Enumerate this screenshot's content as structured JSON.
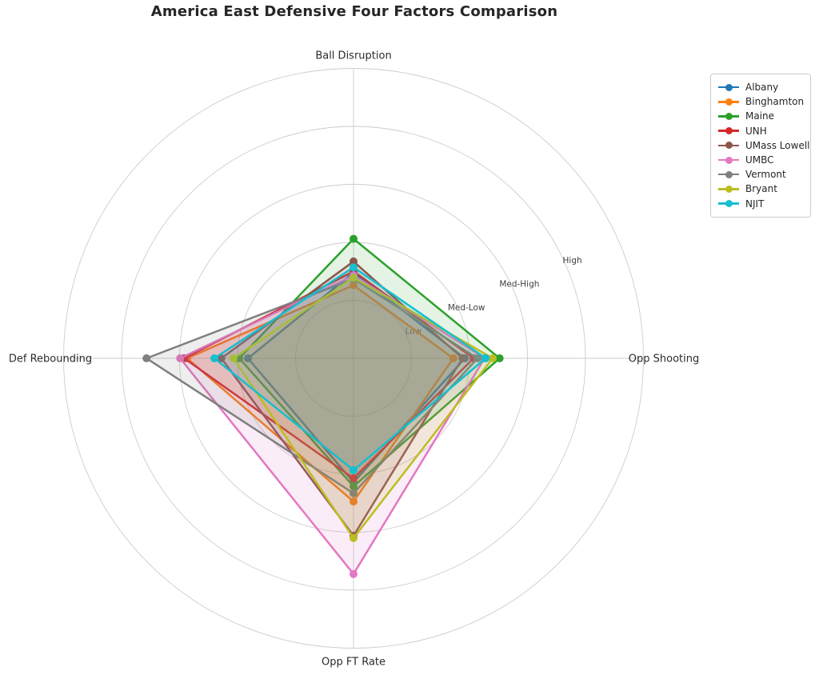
{
  "title": "America East Defensive Four Factors Comparison",
  "chart_data": {
    "type": "radar",
    "title": "America East Defensive Four Factors Comparison",
    "axes": [
      "Ball Disruption",
      "Opp Shooting",
      "Opp FT Rate",
      "Def Rebounding"
    ],
    "radial_ticks": [
      {
        "label": "Low",
        "value": 1
      },
      {
        "label": "Med-Low",
        "value": 2
      },
      {
        "label": "Med-High",
        "value": 3
      },
      {
        "label": "High",
        "value": 4
      }
    ],
    "r_max": 5,
    "grid": true,
    "legend_position": "upper right",
    "series": [
      {
        "name": "Albany",
        "color": "#1f77b4",
        "values": [
          1.48,
          1.92,
          2.14,
          1.82
        ]
      },
      {
        "name": "Binghamton",
        "color": "#ff7f0e",
        "values": [
          1.26,
          1.72,
          2.47,
          2.87
        ]
      },
      {
        "name": "Maine",
        "color": "#2ca02c",
        "values": [
          2.06,
          2.52,
          2.21,
          1.97
        ]
      },
      {
        "name": "UNH",
        "color": "#d62728",
        "values": [
          1.5,
          2.07,
          2.07,
          2.92
        ]
      },
      {
        "name": "UMass Lowell",
        "color": "#8c564b",
        "values": [
          1.67,
          1.88,
          3.06,
          2.28
        ]
      },
      {
        "name": "UMBC",
        "color": "#e377c2",
        "values": [
          1.43,
          2.26,
          3.72,
          2.99
        ]
      },
      {
        "name": "Vermont",
        "color": "#7f7f7f",
        "values": [
          1.37,
          2.14,
          2.33,
          3.57
        ]
      },
      {
        "name": "Bryant",
        "color": "#bcbd22",
        "values": [
          1.39,
          2.4,
          3.1,
          2.07
        ]
      },
      {
        "name": "NJIT",
        "color": "#17becf",
        "values": [
          1.57,
          2.28,
          1.93,
          2.4
        ]
      }
    ]
  },
  "colors": {
    "background": "#ffffff",
    "grid": "#cccccc",
    "title": "#262626",
    "axis_label": "#2b2b2b",
    "tick_label": "#404040",
    "legend_border": "#cccccc"
  }
}
